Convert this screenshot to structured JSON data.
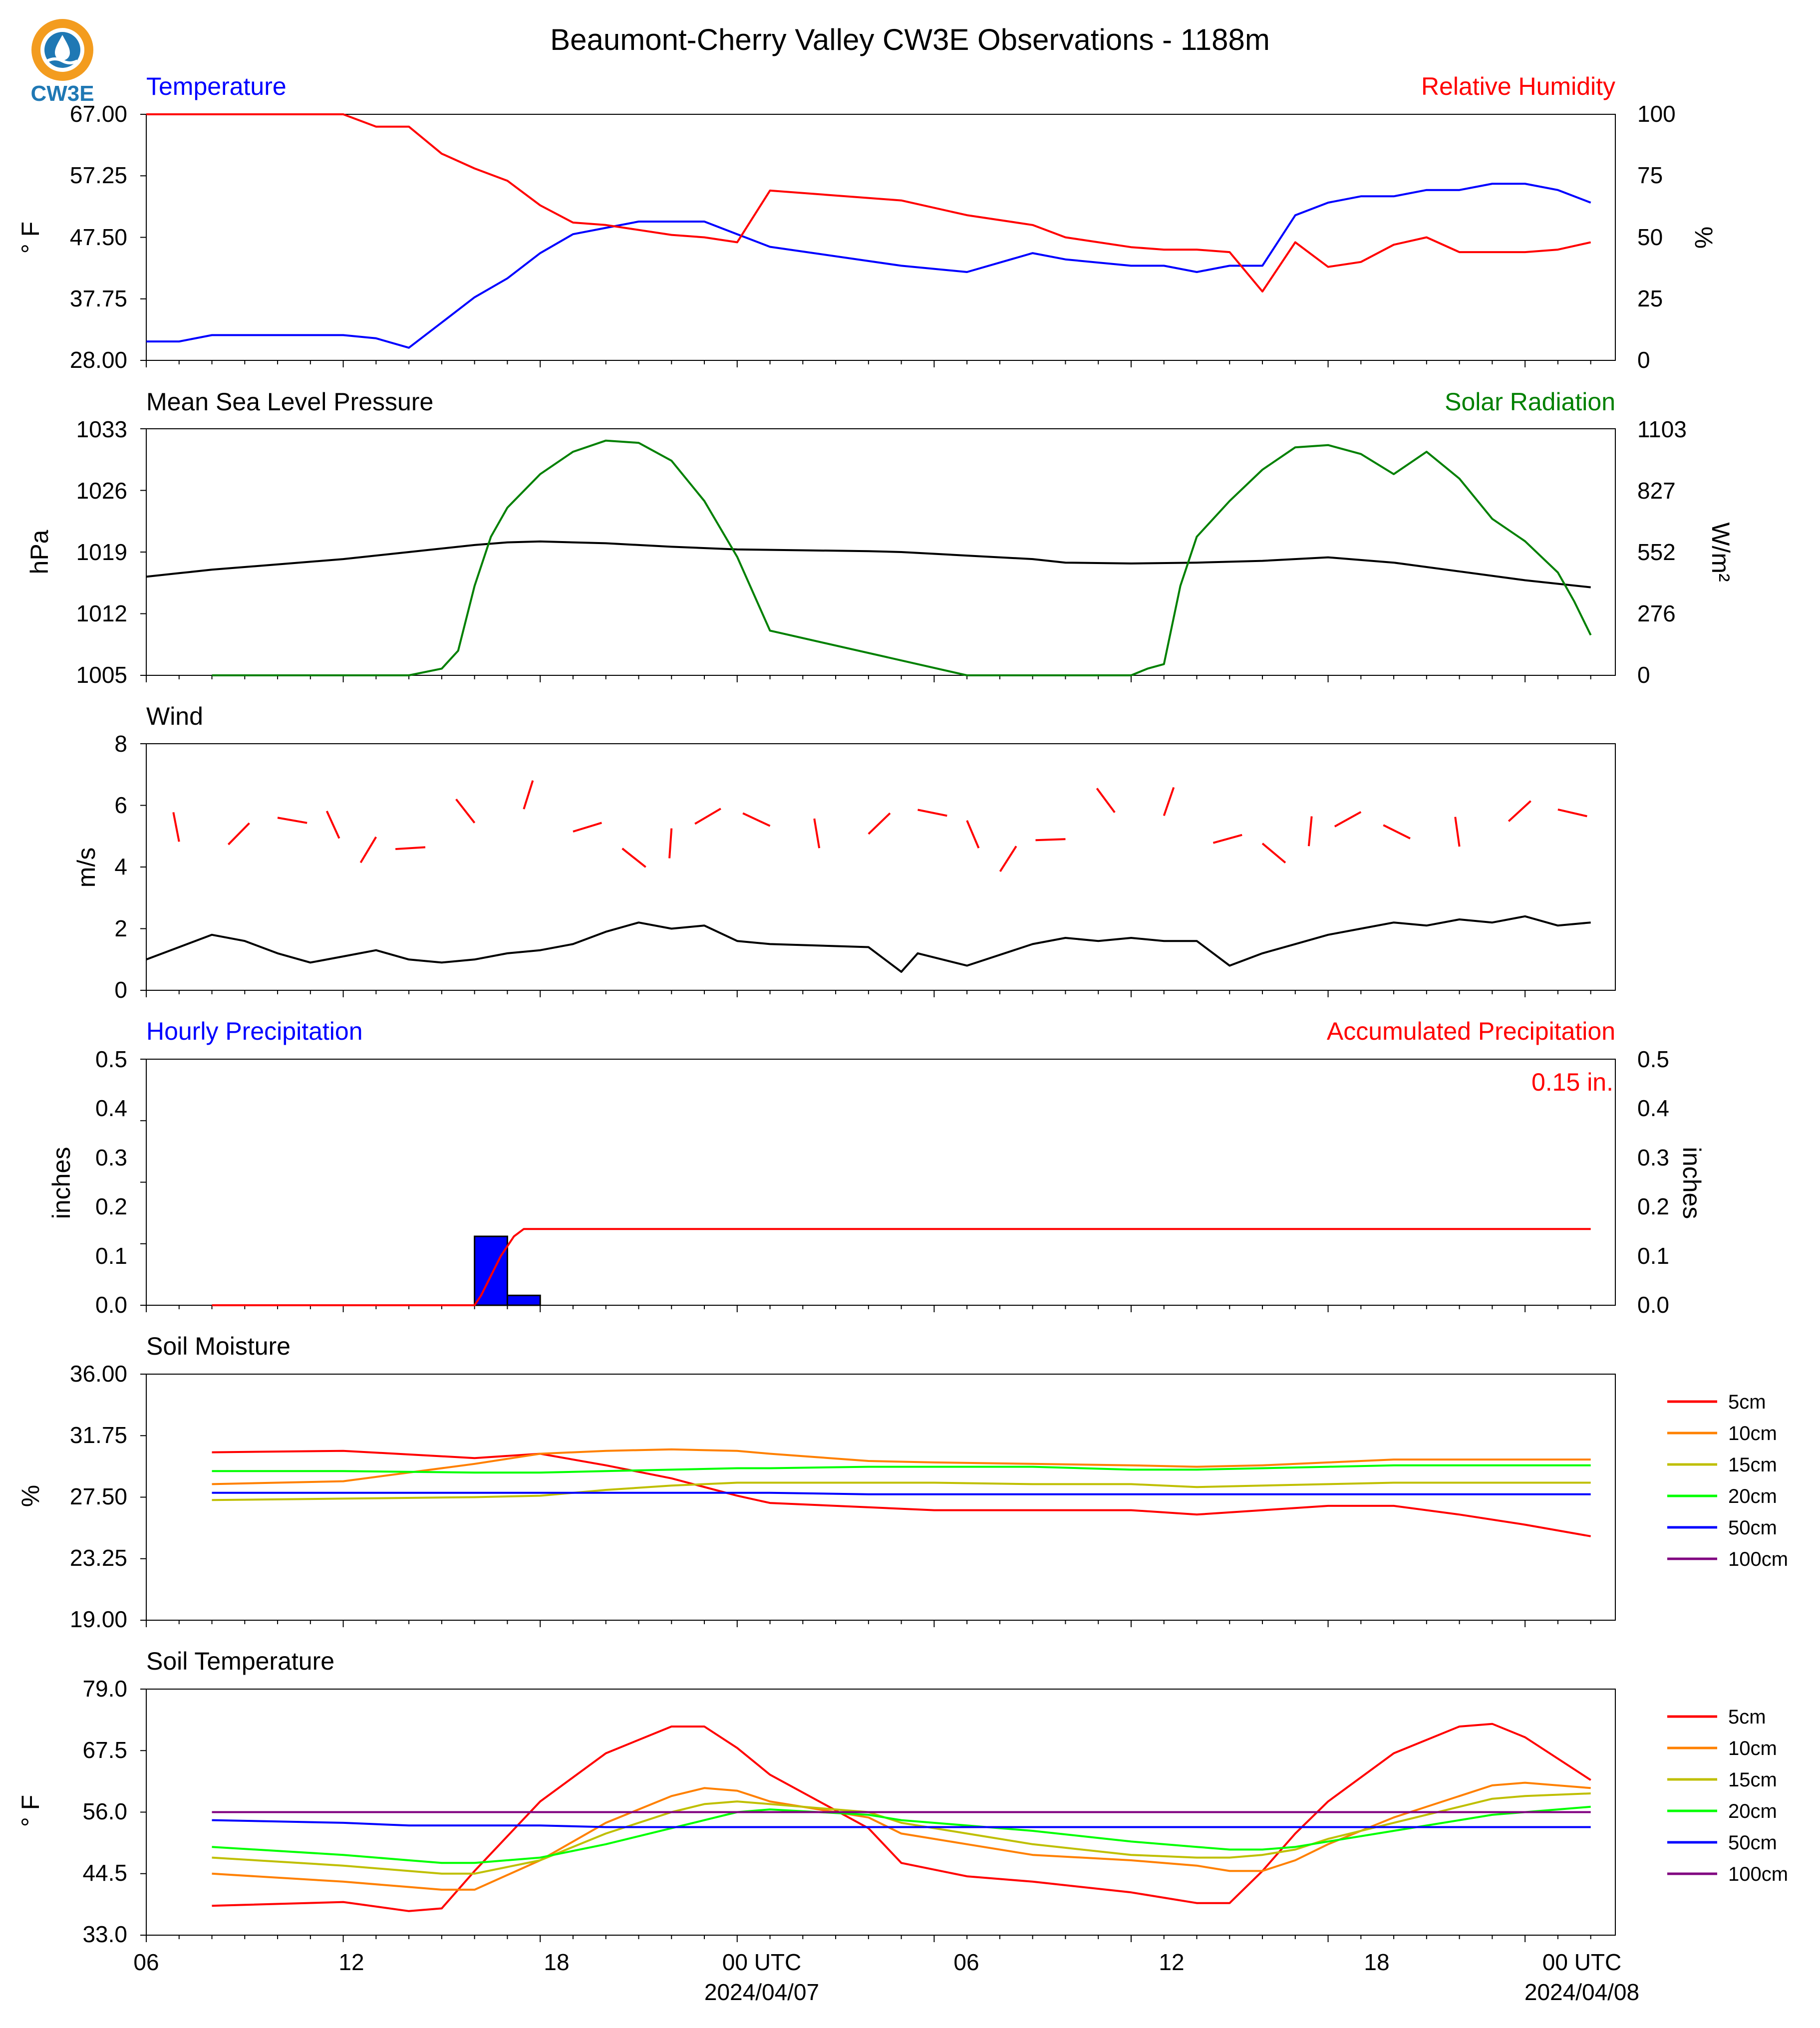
{
  "title": "Beaumont-Cherry Valley CW3E Observations - 1188m",
  "logo": {
    "text": "CW3E",
    "icon": "cw3e-logo-icon"
  },
  "time_axis": {
    "tick_labels": [
      "06",
      "12",
      "18",
      "00 UTC",
      "06",
      "12",
      "18",
      "00 UTC"
    ],
    "date_labels": [
      "2024/04/07",
      "2024/04/08"
    ]
  },
  "colors": {
    "blue": "#0000ff",
    "red": "#ff0000",
    "green": "#008000",
    "black": "#000000",
    "soil_5cm": "#ff0000",
    "soil_10cm": "#ff8000",
    "soil_15cm": "#bfbf00",
    "soil_20cm": "#00ff00",
    "soil_50cm": "#0000ff",
    "soil_100cm": "#800080"
  },
  "panels": {
    "temp_rh": {
      "left_title": "Temperature",
      "right_title": "Relative Humidity",
      "left_ylabel": "° F",
      "right_ylabel": "%",
      "left_ticks": [
        "67.00",
        "57.25",
        "47.50",
        "37.75",
        "28.00"
      ],
      "right_ticks": [
        "100",
        "75",
        "50",
        "25",
        "0"
      ]
    },
    "pressure_solar": {
      "left_title": "Mean Sea Level Pressure",
      "right_title": "Solar Radiation",
      "left_ylabel": "hPa",
      "right_ylabel": "W/m²",
      "left_ticks": [
        "1033",
        "1026",
        "1019",
        "1012",
        "1005"
      ],
      "right_ticks": [
        "1103",
        "827",
        "552",
        "276",
        "0"
      ]
    },
    "wind": {
      "left_title": "Wind",
      "left_ylabel": "m/s",
      "left_ticks": [
        "8",
        "6",
        "4",
        "2",
        "0"
      ]
    },
    "precip": {
      "left_title": "Hourly Precipitation",
      "right_title": "Accumulated Precipitation",
      "left_ylabel": "inches",
      "right_ylabel": "inches",
      "left_ticks": [
        "0.5",
        "0.4",
        "0.3",
        "0.2",
        "0.1",
        "0.0"
      ],
      "right_ticks": [
        "0.5",
        "0.4",
        "0.3",
        "0.2",
        "0.1",
        "0.0"
      ],
      "annotation": "0.15 in."
    },
    "soil_moisture": {
      "left_title": "Soil Moisture",
      "left_ylabel": "%",
      "left_ticks": [
        "36.00",
        "31.75",
        "27.50",
        "23.25",
        "19.00"
      ],
      "legend": [
        "5cm",
        "10cm",
        "15cm",
        "20cm",
        "50cm",
        "100cm"
      ]
    },
    "soil_temp": {
      "left_title": "Soil Temperature",
      "left_ylabel": "° F",
      "left_ticks": [
        "79.0",
        "67.5",
        "56.0",
        "44.5",
        "33.0"
      ],
      "legend": [
        "5cm",
        "10cm",
        "15cm",
        "20cm",
        "50cm",
        "100cm"
      ]
    }
  },
  "chart_data": [
    {
      "type": "line",
      "title": "Temperature",
      "ylabel": "° F",
      "ylim": [
        28,
        67
      ],
      "x_hours_utc": [
        6,
        7,
        8,
        10,
        12,
        13,
        14,
        15,
        16,
        17,
        18,
        19,
        20,
        21,
        22,
        23,
        24,
        25,
        29,
        31,
        33,
        34,
        36,
        37,
        38,
        39,
        40,
        41,
        42,
        43,
        44,
        45,
        46,
        47,
        48,
        49,
        50
      ],
      "series": [
        {
          "name": "Temperature",
          "values": [
            31,
            31,
            32,
            32,
            32,
            31.5,
            30,
            34,
            38,
            41,
            45,
            48,
            49,
            50,
            50,
            50,
            48,
            46,
            43,
            42,
            45,
            44,
            43,
            43,
            42,
            43,
            43,
            51,
            53,
            54,
            54,
            55,
            55,
            56,
            56,
            55,
            53
          ]
        }
      ]
    },
    {
      "type": "line",
      "title": "Relative Humidity",
      "ylabel": "%",
      "ylim": [
        0,
        100
      ],
      "x_hours_utc": [
        6,
        7,
        8,
        10,
        12,
        13,
        14,
        15,
        16,
        17,
        18,
        19,
        20,
        21,
        22,
        23,
        24,
        25,
        29,
        31,
        33,
        34,
        36,
        37,
        38,
        39,
        40,
        41,
        42,
        43,
        44,
        45,
        46,
        47,
        48,
        49,
        50
      ],
      "series": [
        {
          "name": "Relative Humidity",
          "values": [
            100,
            100,
            100,
            100,
            100,
            95,
            95,
            84,
            78,
            73,
            63,
            56,
            55,
            53,
            51,
            50,
            48,
            69,
            65,
            59,
            55,
            50,
            46,
            45,
            45,
            44,
            28,
            48,
            38,
            40,
            47,
            50,
            44,
            44,
            44,
            45,
            48
          ]
        }
      ]
    },
    {
      "type": "line",
      "title": "Mean Sea Level Pressure",
      "ylabel": "hPa",
      "ylim": [
        1005,
        1033
      ],
      "x_hours_utc": [
        6,
        7,
        8,
        10,
        12,
        14,
        16,
        17,
        18,
        20,
        22,
        24,
        26,
        28,
        29,
        31,
        33,
        34,
        36,
        38,
        40,
        42,
        44,
        46,
        48,
        50
      ],
      "series": [
        {
          "name": "Mean Sea Level Pressure",
          "values": [
            1016.2,
            1016.6,
            1017,
            1017.6,
            1018.2,
            1019,
            1019.8,
            1020.1,
            1020.2,
            1020,
            1019.6,
            1019.3,
            1019.2,
            1019.1,
            1019,
            1018.6,
            1018.2,
            1017.8,
            1017.7,
            1017.8,
            1018,
            1018.4,
            1017.8,
            1016.8,
            1015.8,
            1015
          ]
        }
      ]
    },
    {
      "type": "line",
      "title": "Solar Radiation",
      "ylabel": "W/m²",
      "ylim": [
        0,
        1103
      ],
      "x_hours_utc": [
        8,
        13,
        14,
        15,
        15.5,
        16,
        16.5,
        17,
        18,
        19,
        20,
        21,
        22,
        23,
        24,
        25,
        31,
        33,
        35,
        36,
        36.5,
        37,
        37.5,
        38,
        39,
        40,
        41,
        42,
        43,
        44,
        45,
        46,
        47,
        48,
        49,
        49.5,
        50
      ],
      "series": [
        {
          "name": "Solar Radiation",
          "values": [
            0,
            0,
            0,
            30,
            110,
            400,
            620,
            750,
            900,
            1000,
            1050,
            1040,
            960,
            780,
            530,
            200,
            0,
            0,
            0,
            0,
            30,
            50,
            400,
            620,
            780,
            920,
            1020,
            1030,
            990,
            900,
            1000,
            880,
            700,
            600,
            460,
            330,
            180
          ]
        }
      ]
    },
    {
      "type": "line",
      "title": "Wind",
      "ylabel": "m/s",
      "ylim": [
        0,
        8
      ],
      "x_hours_utc": [
        6,
        7,
        8,
        9,
        10,
        11,
        12,
        13,
        14,
        15,
        16,
        17,
        18,
        19,
        20,
        21,
        22,
        23,
        24,
        25,
        28,
        29,
        29.5,
        31,
        33,
        34,
        35,
        36,
        37,
        38,
        39,
        40,
        41,
        42,
        43,
        44,
        45,
        46,
        47,
        48,
        49,
        50
      ],
      "series": [
        {
          "name": "Wind speed",
          "values": [
            1,
            1.4,
            1.8,
            1.6,
            1.2,
            0.9,
            1.1,
            1.3,
            1,
            0.9,
            1,
            1.2,
            1.3,
            1.5,
            1.9,
            2.2,
            2,
            2.1,
            1.6,
            1.5,
            1.4,
            0.6,
            1.2,
            0.8,
            1.5,
            1.7,
            1.6,
            1.7,
            1.6,
            1.6,
            0.8,
            1.2,
            1.5,
            1.8,
            2,
            2.2,
            2.1,
            2.3,
            2.2,
            2.4,
            2.1,
            2.2
          ]
        }
      ]
    },
    {
      "type": "bar",
      "title": "Hourly Precipitation",
      "ylabel": "inches",
      "ylim": [
        0,
        0.5
      ],
      "categories": [
        "16",
        "17"
      ],
      "values": [
        0.14,
        0.02
      ]
    },
    {
      "type": "line",
      "title": "Accumulated Precipitation",
      "ylabel": "inches",
      "ylim": [
        0,
        0.5
      ],
      "x_hours_utc": [
        8,
        16,
        16.2,
        16.5,
        16.8,
        17,
        17.2,
        17.5,
        20,
        24,
        26,
        28,
        30,
        33,
        40,
        50
      ],
      "series": [
        {
          "name": "Accumulated Precipitation",
          "values": [
            0,
            0,
            0.02,
            0.06,
            0.1,
            0.12,
            0.14,
            0.155,
            0.155,
            0.155,
            0.155,
            0.155,
            0.155,
            0.155,
            0.155,
            0.155
          ]
        }
      ]
    },
    {
      "type": "line",
      "title": "Soil Moisture",
      "ylabel": "%",
      "ylim": [
        19,
        36
      ],
      "x_hours_utc": [
        8,
        12,
        16,
        18,
        20,
        22,
        24,
        25,
        28,
        30,
        33,
        36,
        38,
        40,
        42,
        44,
        46,
        48,
        50
      ],
      "series": [
        {
          "name": "5cm",
          "values": [
            30.6,
            30.7,
            30.2,
            30.5,
            29.7,
            28.8,
            27.6,
            27.1,
            26.8,
            26.6,
            26.6,
            26.6,
            26.3,
            26.6,
            26.9,
            26.9,
            26.3,
            25.6,
            24.8
          ]
        },
        {
          "name": "10cm",
          "values": [
            28.4,
            28.6,
            29.8,
            30.5,
            30.7,
            30.8,
            30.7,
            30.5,
            30.0,
            29.9,
            29.8,
            29.7,
            29.6,
            29.7,
            29.9,
            30.1,
            30.1,
            30.1,
            30.1
          ]
        },
        {
          "name": "15cm",
          "values": [
            27.3,
            27.4,
            27.5,
            27.6,
            28.0,
            28.3,
            28.5,
            28.5,
            28.5,
            28.5,
            28.4,
            28.4,
            28.2,
            28.3,
            28.4,
            28.5,
            28.5,
            28.5,
            28.5
          ]
        },
        {
          "name": "20cm",
          "values": [
            29.3,
            29.3,
            29.2,
            29.2,
            29.3,
            29.4,
            29.5,
            29.5,
            29.6,
            29.6,
            29.6,
            29.4,
            29.4,
            29.5,
            29.6,
            29.7,
            29.7,
            29.7,
            29.7
          ]
        },
        {
          "name": "50cm",
          "values": [
            27.8,
            27.8,
            27.8,
            27.8,
            27.8,
            27.8,
            27.8,
            27.8,
            27.7,
            27.7,
            27.7,
            27.7,
            27.7,
            27.7,
            27.7,
            27.7,
            27.7,
            27.7,
            27.7
          ]
        },
        {
          "name": "100cm",
          "values": []
        }
      ]
    },
    {
      "type": "line",
      "title": "Soil Temperature",
      "ylabel": "° F",
      "ylim": [
        33,
        79
      ],
      "x_hours_utc": [
        8,
        12,
        14,
        15,
        16,
        18,
        20,
        22,
        23,
        24,
        25,
        28,
        29,
        31,
        33,
        36,
        38,
        39,
        40,
        41,
        42,
        44,
        46,
        47,
        48,
        50
      ],
      "series": [
        {
          "name": "5cm",
          "values": [
            38.5,
            39.2,
            37.5,
            38,
            45,
            58,
            67,
            72,
            72,
            68,
            63,
            53,
            46.5,
            44,
            43,
            41,
            39,
            39,
            45,
            52,
            58,
            67,
            72,
            72.5,
            70,
            62
          ]
        },
        {
          "name": "10cm",
          "values": [
            44.5,
            43,
            42,
            41.5,
            41.5,
            47,
            54,
            59,
            60.5,
            60,
            58,
            55,
            52,
            50,
            48,
            47,
            46,
            45,
            45,
            47,
            50,
            55,
            59,
            61,
            61.5,
            60.5
          ]
        },
        {
          "name": "15cm",
          "values": [
            47.5,
            46,
            45,
            44.5,
            44.5,
            47,
            52,
            56,
            57.5,
            58,
            57.5,
            56,
            54,
            52,
            50,
            48,
            47.5,
            47.5,
            48,
            49,
            51,
            54,
            57,
            58.5,
            59,
            59.5
          ]
        },
        {
          "name": "20cm",
          "values": [
            49.5,
            48,
            47,
            46.5,
            46.5,
            47.5,
            50,
            53,
            54.5,
            56,
            56.5,
            55.5,
            54.5,
            53.5,
            52.5,
            50.5,
            49.5,
            49,
            49,
            49.5,
            50.5,
            52.5,
            54.5,
            55.5,
            56,
            57
          ]
        },
        {
          "name": "50cm",
          "values": [
            54.5,
            54,
            53.5,
            53.5,
            53.5,
            53.5,
            53.2,
            53.2,
            53.2,
            53.2,
            53.2,
            53.2,
            53.2,
            53.2,
            53.2,
            53.2,
            53.2,
            53.2,
            53.2,
            53.2,
            53.2,
            53.2,
            53.2,
            53.2,
            53.2,
            53.2
          ]
        },
        {
          "name": "100cm",
          "values": [
            56,
            56,
            56,
            56,
            56,
            56,
            56,
            56,
            56,
            56,
            56,
            56,
            56,
            56,
            56,
            56,
            56,
            56,
            56,
            56,
            56,
            56,
            56,
            56,
            56,
            56
          ]
        }
      ]
    }
  ]
}
